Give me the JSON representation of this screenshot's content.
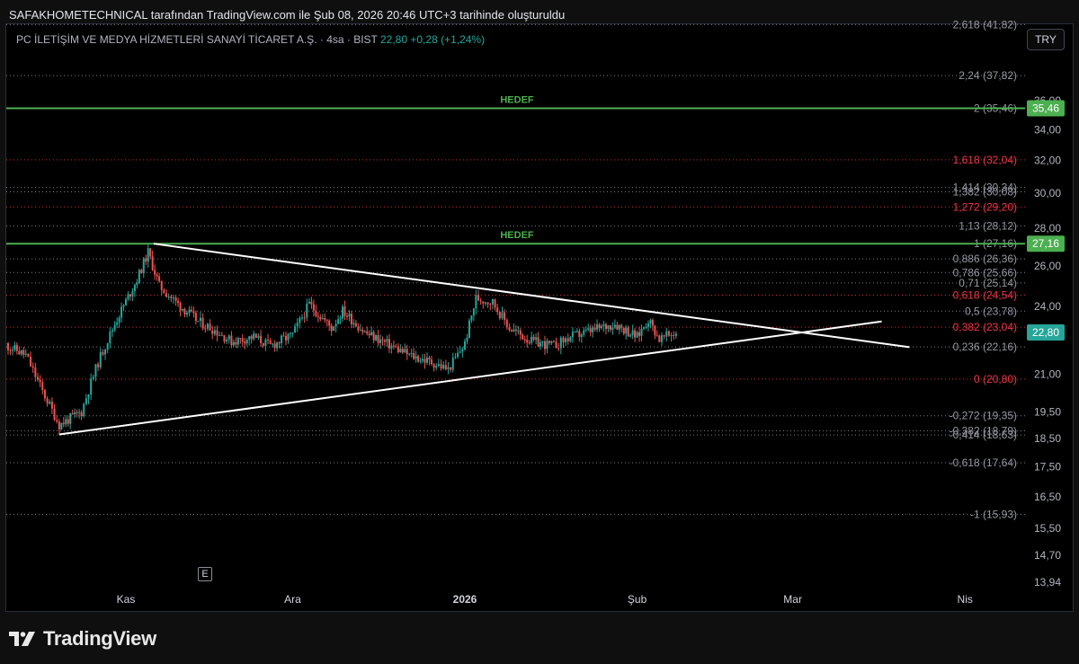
{
  "header": {
    "caption": "SAFAKHOMETECHNICAL tarafından TradingView.com ile Şub 08, 2026 20:46 UTC+3 tarihinde oluşturuldu"
  },
  "symbol": {
    "name": "PC İLETİŞİM VE MEDYA HİZMETLERİ SANAYİ TİCARET A.Ş. · 4sa · BIST",
    "last_price": "22,80",
    "change": "+0,28 (+1,24%)"
  },
  "currency_button": "TRY",
  "footer": {
    "brand": "TradingView"
  },
  "event_marker": "E",
  "colors": {
    "up": "#26a69a",
    "down": "#ef5350",
    "hedef_line": "#4caf50",
    "trend_line": "#ffffff",
    "fib_red": "#f23645",
    "fib_gray": "#9598a1",
    "background": "#000000"
  },
  "chart_data": {
    "type": "candlestick",
    "title": "",
    "y_scale": "log",
    "y_range": [
      13.94,
      42.5
    ],
    "y_ticks": [
      "36,00",
      "34,00",
      "32,00",
      "30,00",
      "28,00",
      "26,00",
      "24,00",
      "21,00",
      "19,50",
      "18,50",
      "17,50",
      "16,50",
      "15,50",
      "14,70",
      "13,94"
    ],
    "x_ticks": [
      {
        "label": "Kas",
        "bold": false
      },
      {
        "label": "Ara",
        "bold": false
      },
      {
        "label": "2026",
        "bold": true
      },
      {
        "label": "Mar",
        "bold": false
      },
      {
        "label": "Nis",
        "bold": false
      }
    ],
    "x_tick_shub": "Şub",
    "current_price_label": "22,80",
    "hedef_levels": [
      {
        "label": "HEDEF",
        "price": 35.46,
        "price_label": "35,46"
      },
      {
        "label": "HEDEF",
        "price": 27.16,
        "price_label": "27,16"
      }
    ],
    "fib_levels": [
      {
        "label": "2,618 (41,82)",
        "price": 41.82,
        "color": "gray"
      },
      {
        "label": "2,24 (37,82)",
        "price": 37.82,
        "color": "gray"
      },
      {
        "label": "2 (35,46)",
        "price": 35.46,
        "color": "gray"
      },
      {
        "label": "1,618 (32,04)",
        "price": 32.04,
        "color": "red"
      },
      {
        "label": "1,414 (30,34)",
        "price": 30.34,
        "color": "gray"
      },
      {
        "label": "1,382 (30,08)",
        "price": 30.08,
        "color": "gray"
      },
      {
        "label": "1,272 (29,20)",
        "price": 29.2,
        "color": "red"
      },
      {
        "label": "1,13 (28,12)",
        "price": 28.12,
        "color": "gray"
      },
      {
        "label": "1 (27,16)",
        "price": 27.16,
        "color": "gray"
      },
      {
        "label": "0,886 (26,36)",
        "price": 26.36,
        "color": "gray"
      },
      {
        "label": "0,786 (25,66)",
        "price": 25.66,
        "color": "gray"
      },
      {
        "label": "0,71 (25,14)",
        "price": 25.14,
        "color": "gray"
      },
      {
        "label": "0,618 (24,54)",
        "price": 24.54,
        "color": "red"
      },
      {
        "label": "0,5 (23,78)",
        "price": 23.78,
        "color": "gray"
      },
      {
        "label": "0,382 (23,04)",
        "price": 23.04,
        "color": "red"
      },
      {
        "label": "0,236 (22,16)",
        "price": 22.16,
        "color": "gray"
      },
      {
        "label": "0 (20,80)",
        "price": 20.8,
        "color": "red"
      },
      {
        "label": "-0,272 (19,35)",
        "price": 19.35,
        "color": "gray"
      },
      {
        "label": "-0,382 (18,79)",
        "price": 18.79,
        "color": "gray"
      },
      {
        "label": "-0,414 (18,63)",
        "price": 18.63,
        "color": "gray"
      },
      {
        "label": "-0,618 (17,64)",
        "price": 17.64,
        "color": "gray"
      },
      {
        "label": "-1 (15,93)",
        "price": 15.93,
        "color": "gray"
      }
    ],
    "trend_lines": [
      {
        "name": "upper",
        "from": {
          "date": "2025-11-06",
          "price": 27.16
        },
        "to": {
          "date": "2026-03-22",
          "price": 22.15
        }
      },
      {
        "name": "lower",
        "from": {
          "date": "2025-10-20",
          "price": 18.65
        },
        "to": {
          "date": "2026-03-17",
          "price": 23.3
        }
      }
    ],
    "price_series": [
      {
        "date": "2025-10-10",
        "price": 22.3
      },
      {
        "date": "2025-10-14",
        "price": 21.8
      },
      {
        "date": "2025-10-17",
        "price": 20.3
      },
      {
        "date": "2025-10-20",
        "price": 19.0
      },
      {
        "date": "2025-10-24",
        "price": 19.5
      },
      {
        "date": "2025-10-27",
        "price": 21.5
      },
      {
        "date": "2025-10-30",
        "price": 23.2
      },
      {
        "date": "2025-11-03",
        "price": 25.3
      },
      {
        "date": "2025-11-05",
        "price": 26.7
      },
      {
        "date": "2025-11-07",
        "price": 25.0
      },
      {
        "date": "2025-11-10",
        "price": 24.2
      },
      {
        "date": "2025-11-14",
        "price": 23.3
      },
      {
        "date": "2025-11-17",
        "price": 22.9
      },
      {
        "date": "2025-11-20",
        "price": 22.4
      },
      {
        "date": "2025-11-24",
        "price": 22.6
      },
      {
        "date": "2025-11-27",
        "price": 22.2
      },
      {
        "date": "2025-12-01",
        "price": 22.7
      },
      {
        "date": "2025-12-04",
        "price": 24.1
      },
      {
        "date": "2025-12-08",
        "price": 23.0
      },
      {
        "date": "2025-12-10",
        "price": 23.8
      },
      {
        "date": "2025-12-14",
        "price": 22.8
      },
      {
        "date": "2025-12-18",
        "price": 22.3
      },
      {
        "date": "2025-12-22",
        "price": 21.8
      },
      {
        "date": "2025-12-26",
        "price": 21.5
      },
      {
        "date": "2025-12-29",
        "price": 21.2
      },
      {
        "date": "2026-01-01",
        "price": 22.3
      },
      {
        "date": "2026-01-03",
        "price": 24.4
      },
      {
        "date": "2026-01-06",
        "price": 24.2
      },
      {
        "date": "2026-01-09",
        "price": 23.0
      },
      {
        "date": "2026-01-13",
        "price": 22.4
      },
      {
        "date": "2026-01-17",
        "price": 22.2
      },
      {
        "date": "2026-01-20",
        "price": 22.6
      },
      {
        "date": "2026-01-24",
        "price": 22.9
      },
      {
        "date": "2026-01-28",
        "price": 23.2
      },
      {
        "date": "2026-02-01",
        "price": 22.6
      },
      {
        "date": "2026-02-03",
        "price": 23.4
      },
      {
        "date": "2026-02-05",
        "price": 22.5
      },
      {
        "date": "2026-02-08",
        "price": 22.8
      }
    ]
  }
}
